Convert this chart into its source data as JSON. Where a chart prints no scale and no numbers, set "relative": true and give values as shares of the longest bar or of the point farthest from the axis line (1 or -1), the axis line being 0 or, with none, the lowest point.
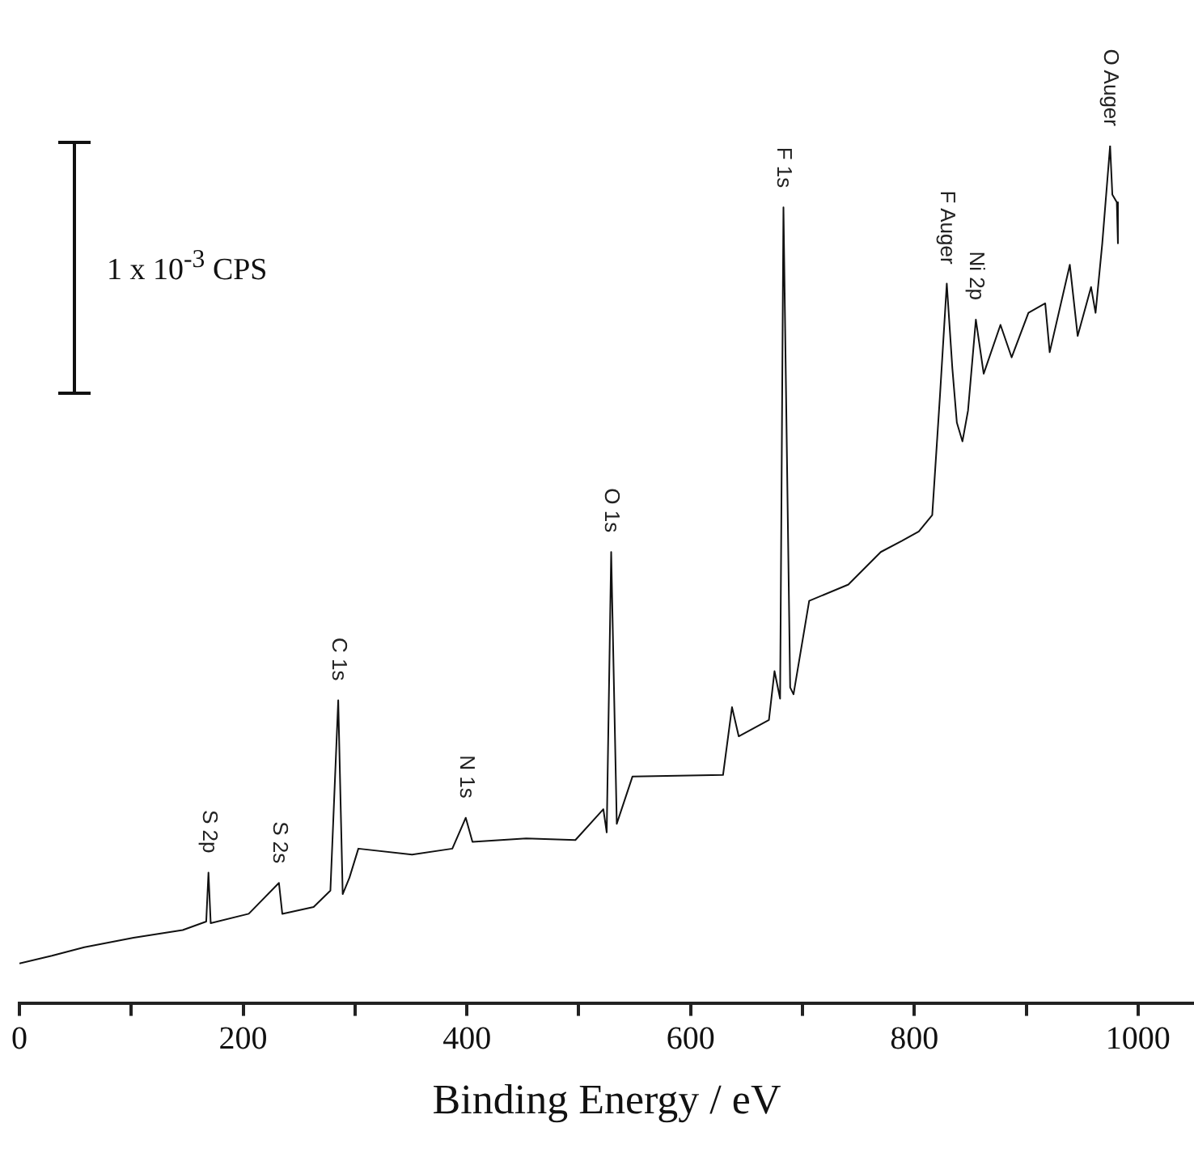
{
  "chart_data": {
    "type": "line",
    "relative": true,
    "xlabel": "Binding Energy / eV",
    "xlim": [
      0,
      1050
    ],
    "xticks": [
      0,
      {
        "value": 100,
        "label": null
      },
      200,
      {
        "value": 300,
        "label": null
      },
      400,
      {
        "value": 500,
        "label": null
      },
      600,
      {
        "value": 700,
        "label": null
      },
      800,
      {
        "value": 900,
        "label": null
      },
      1000
    ],
    "grid": false,
    "legend": false,
    "marker": "none",
    "line_style": "solid",
    "series": [
      {
        "color": "#111111",
        "x": [
          0,
          29,
          58,
          102,
          146,
          167,
          169,
          171,
          205,
          232,
          235,
          263,
          278,
          285,
          289,
          295,
          303,
          351,
          387,
          399,
          405,
          453,
          497,
          522,
          525,
          529,
          534,
          548,
          629,
          637,
          643,
          670,
          675,
          680,
          683,
          689,
          692,
          706,
          741,
          770,
          789,
          804,
          816,
          823,
          829,
          834,
          838,
          843,
          848,
          855,
          862,
          877,
          887,
          902,
          917,
          921,
          939,
          946,
          958,
          962,
          968,
          975,
          977,
          981,
          982
        ],
        "values": [
          0.046,
          0.055,
          0.065,
          0.076,
          0.085,
          0.095,
          0.152,
          0.093,
          0.104,
          0.14,
          0.104,
          0.112,
          0.131,
          0.353,
          0.127,
          0.146,
          0.18,
          0.173,
          0.18,
          0.216,
          0.188,
          0.192,
          0.19,
          0.226,
          0.199,
          0.526,
          0.209,
          0.264,
          0.266,
          0.345,
          0.311,
          0.33,
          0.387,
          0.355,
          0.928,
          0.368,
          0.36,
          0.469,
          0.488,
          0.526,
          0.539,
          0.55,
          0.569,
          0.71,
          0.839,
          0.74,
          0.677,
          0.655,
          0.691,
          0.797,
          0.734,
          0.791,
          0.753,
          0.805,
          0.816,
          0.759,
          0.861,
          0.778,
          0.835,
          0.805,
          0.886,
          1.0,
          0.943,
          0.934,
          0.886
        ]
      }
    ],
    "annotations": [
      "1 x 10$^{-3}$ CPS",
      {
        "text": "S 2p",
        "x": 169,
        "y": 0.152
      },
      {
        "text": "S 2s",
        "x": 232,
        "y": 0.14
      },
      {
        "text": "C 1s",
        "x": 285,
        "y": 0.353
      },
      {
        "text": "N 1s",
        "x": 399,
        "y": 0.216
      },
      {
        "text": "O 1s",
        "x": 529,
        "y": 0.526
      },
      {
        "text": "F 1s",
        "x": 683,
        "y": 0.928
      },
      {
        "text": "F Auger",
        "x": 829,
        "y": 0.839
      },
      {
        "text": "Ni 2p",
        "x": 855,
        "y": 0.797
      },
      {
        "text": "O Auger",
        "x": 975,
        "y": 1.0
      }
    ]
  }
}
